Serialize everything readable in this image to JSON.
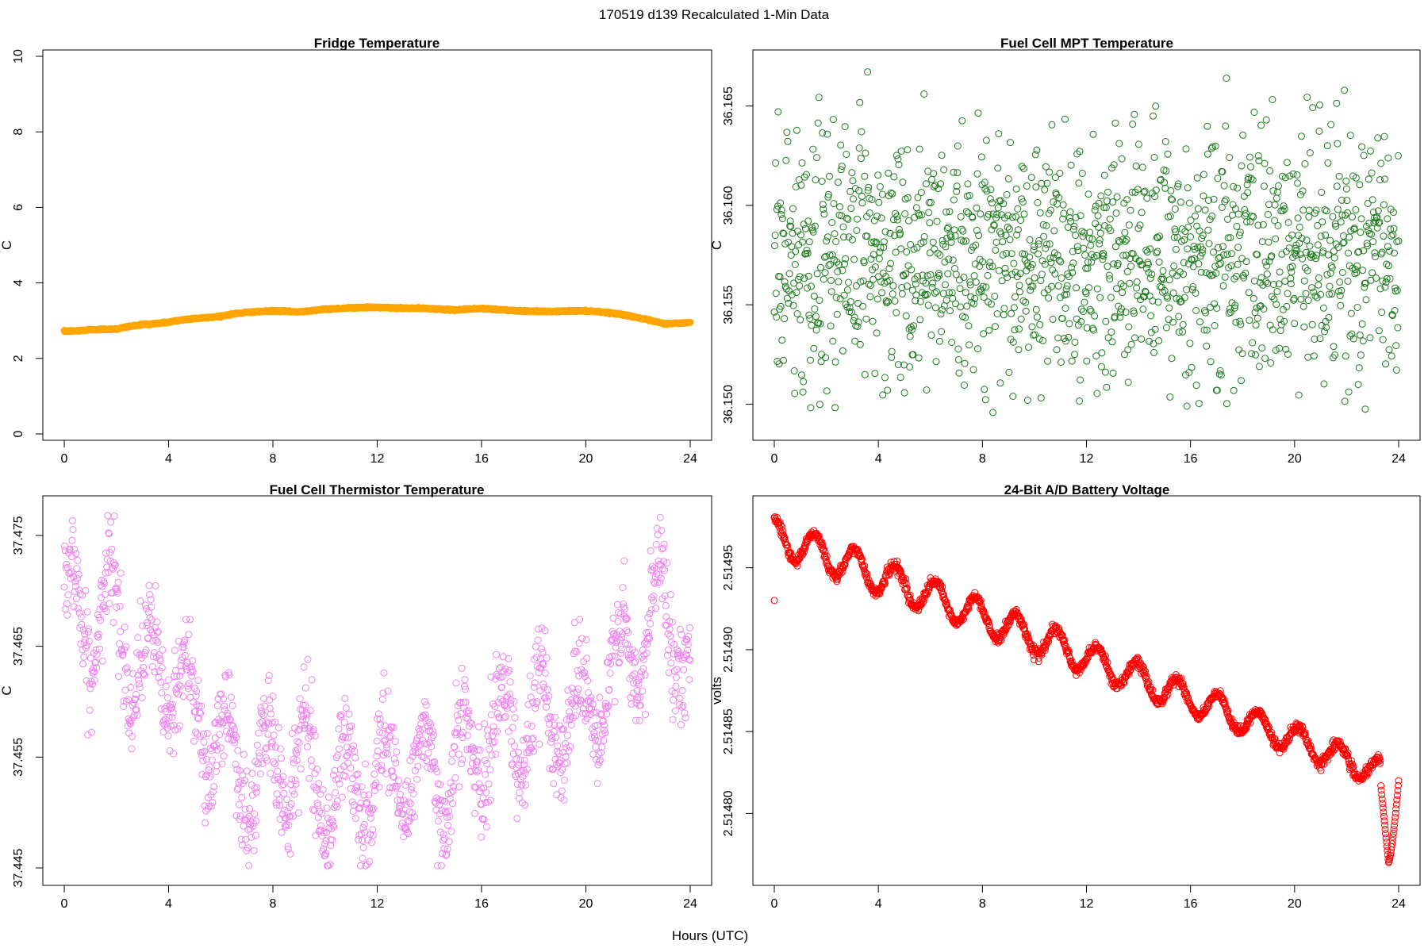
{
  "figure": {
    "title": "170519   d139   Recalculated 1-Min Data",
    "shared_xlabel": "Hours (UTC)"
  },
  "chart_data": [
    {
      "type": "scatter",
      "title": "Fridge Temperature",
      "xlabel": "",
      "ylabel": "C",
      "xlim": [
        0,
        24
      ],
      "ylim": [
        0,
        10
      ],
      "xticks": [
        0,
        4,
        8,
        12,
        16,
        20,
        24
      ],
      "yticks": [
        0,
        2,
        4,
        6,
        8,
        10
      ],
      "color": "#FFA500",
      "marker": "open-circle",
      "n_points": 1440,
      "series": [
        {
          "name": "Fridge Temperature",
          "x": [
            0,
            0.5,
            1,
            1.5,
            2,
            2.5,
            3,
            3.5,
            4,
            4.5,
            5,
            5.5,
            6,
            6.5,
            7,
            7.5,
            8,
            8.5,
            9,
            9.5,
            10,
            10.5,
            11,
            11.5,
            12,
            12.5,
            13,
            13.5,
            14,
            14.5,
            15,
            15.5,
            16,
            16.5,
            17,
            17.5,
            18,
            18.5,
            19,
            19.5,
            20,
            20.5,
            21,
            21.5,
            22,
            22.5,
            23,
            23.5,
            24
          ],
          "y": [
            2.72,
            2.73,
            2.76,
            2.77,
            2.78,
            2.85,
            2.9,
            2.92,
            2.96,
            3.02,
            3.06,
            3.08,
            3.12,
            3.18,
            3.22,
            3.24,
            3.26,
            3.25,
            3.23,
            3.27,
            3.3,
            3.32,
            3.34,
            3.35,
            3.35,
            3.34,
            3.33,
            3.33,
            3.32,
            3.3,
            3.28,
            3.31,
            3.32,
            3.3,
            3.28,
            3.26,
            3.25,
            3.24,
            3.25,
            3.26,
            3.26,
            3.24,
            3.2,
            3.15,
            3.08,
            3.0,
            2.92,
            2.93,
            2.95
          ]
        }
      ]
    },
    {
      "type": "scatter",
      "title": "Fuel Cell MPT Temperature",
      "xlabel": "",
      "ylabel": "C",
      "xlim": [
        0,
        24
      ],
      "ylim": [
        36.1485,
        36.1675
      ],
      "xticks": [
        0,
        4,
        8,
        12,
        16,
        20,
        24
      ],
      "yticks": [
        36.15,
        36.155,
        36.16,
        36.165
      ],
      "ytick_labels": [
        "36.150",
        "36.155",
        "36.160",
        "36.165"
      ],
      "color": "#1A7A1A",
      "marker": "open-circle",
      "n_points": 1440,
      "series": [
        {
          "name": "Fuel Cell MPT Temperature",
          "x_range": [
            0,
            24
          ],
          "y_mean": 36.1575,
          "y_sd": 0.0033,
          "y_min": 36.1495,
          "y_max": 36.1673
        }
      ]
    },
    {
      "type": "scatter",
      "title": "Fuel Cell Thermistor Temperature",
      "xlabel": "",
      "ylabel": "C",
      "xlim": [
        0,
        24
      ],
      "ylim": [
        37.444,
        37.478
      ],
      "xticks": [
        0,
        4,
        8,
        12,
        16,
        20,
        24
      ],
      "yticks": [
        37.445,
        37.455,
        37.465,
        37.475
      ],
      "ytick_labels": [
        "37.445",
        "37.455",
        "37.465",
        "37.475"
      ],
      "color": "#EE82EE",
      "marker": "open-circle",
      "n_points": 1440,
      "series": [
        {
          "name": "Fuel Cell Thermistor Temperature",
          "x": [
            0,
            1,
            2,
            3,
            4,
            5,
            6,
            7,
            8,
            9,
            10,
            11,
            12,
            13,
            14,
            15,
            16,
            17,
            18,
            19,
            20,
            21,
            22,
            23,
            24
          ],
          "y_center": [
            37.469,
            37.467,
            37.468,
            37.462,
            37.463,
            37.459,
            37.456,
            37.453,
            37.454,
            37.455,
            37.452,
            37.452,
            37.453,
            37.454,
            37.453,
            37.454,
            37.456,
            37.458,
            37.458,
            37.459,
            37.459,
            37.462,
            37.465,
            37.469,
            37.464
          ],
          "oscillation_amplitude": 0.0045,
          "oscillation_period_hours": 1.5
        }
      ]
    },
    {
      "type": "scatter",
      "title": "24-Bit A/D Battery Voltage",
      "xlabel": "",
      "ylabel": "volts",
      "xlim": [
        0,
        24
      ],
      "ylim": [
        2.51476,
        2.51499
      ],
      "xticks": [
        0,
        4,
        8,
        12,
        16,
        20,
        24
      ],
      "yticks": [
        2.5148,
        2.51485,
        2.5149,
        2.51495
      ],
      "ytick_labels": [
        "2.51480",
        "2.51485",
        "2.51490",
        "2.51495"
      ],
      "color": "#FF0000",
      "marker": "open-circle",
      "n_points": 1440,
      "outliers": [
        {
          "x": 0.0,
          "y": 2.51493
        }
      ],
      "series": [
        {
          "name": "24-Bit A/D Battery Voltage",
          "x_range": [
            0,
            24
          ],
          "y_start": 2.51497,
          "y_end": 2.51482,
          "oscillation_period_hours": 1.55,
          "oscillation_amplitude_start": 2.2e-05,
          "oscillation_amplitude_end": 1.6e-05,
          "final_dip_min": 2.51477,
          "final_value": 2.51482
        }
      ]
    }
  ]
}
